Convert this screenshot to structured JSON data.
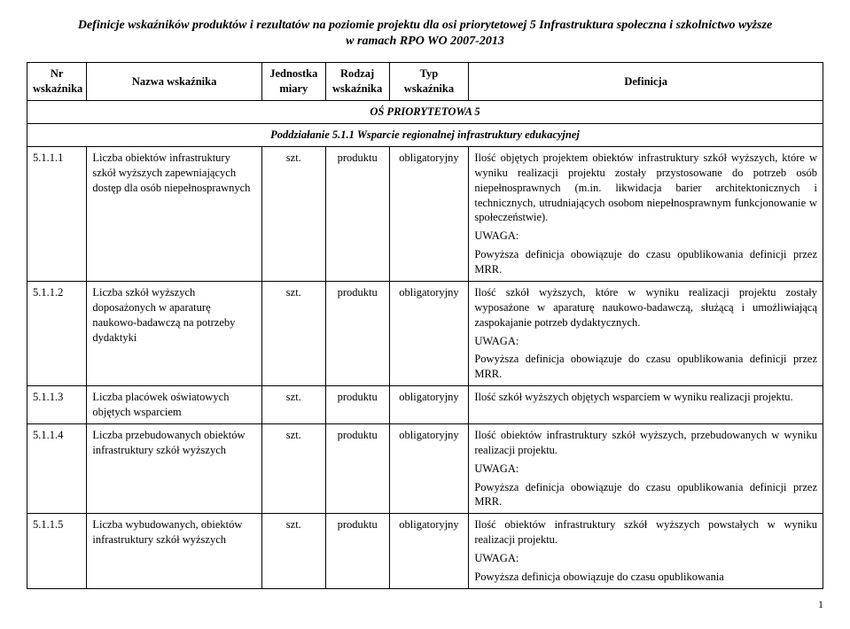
{
  "header": {
    "line1": "Definicje wskaźników produktów i rezultatów na poziomie projektu dla osi priorytetowej 5 Infrastruktura społeczna i szkolnictwo wyższe",
    "line2": "w ramach RPO WO 2007-2013"
  },
  "columns": {
    "c1": "Nr wskaźnika",
    "c2": "Nazwa wskaźnika",
    "c3": "Jednostka miary",
    "c4": "Rodzaj wskaźnika",
    "c5": "Typ wskaźnika",
    "c6": "Definicja"
  },
  "axis_row": "OŚ PRIORYTETOWA 5",
  "sub_row": "Poddziałanie 5.1.1 Wsparcie regionalnej infrastruktury edukacyjnej",
  "rows": [
    {
      "nr": "5.1.1.1",
      "nazwa": "Liczba obiektów infrastruktury szkół wyższych zapewniających dostęp dla osób niepełnosprawnych",
      "jedn": "szt.",
      "rodzaj": "produktu",
      "typ": "obligatoryjny",
      "def_p1": "Ilość objętych projektem obiektów infrastruktury szkół wyższych, które w wyniku realizacji projektu zostały przystosowane do potrzeb osób niepełnosprawnych (m.in. likwidacja barier architektonicznych i technicznych, utrudniających osobom niepełnosprawnym funkcjonowanie w społeczeństwie).",
      "def_p2": "UWAGA:",
      "def_p3": "Powyższa definicja obowiązuje do czasu opublikowania definicji przez MRR."
    },
    {
      "nr": "5.1.1.2",
      "nazwa": "Liczba szkół wyższych doposażonych w aparaturę naukowo-badawczą na potrzeby dydaktyki",
      "jedn": "szt.",
      "rodzaj": "produktu",
      "typ": "obligatoryjny",
      "def_p1": "Ilość szkół wyższych, które w wyniku realizacji projektu zostały wyposażone w aparaturę naukowo-badawczą, służącą i umożliwiającą zaspokajanie potrzeb dydaktycznych.",
      "def_p2": "UWAGA:",
      "def_p3": "Powyższa definicja obowiązuje do czasu opublikowania definicji przez MRR."
    },
    {
      "nr": "5.1.1.3",
      "nazwa": "Liczba placówek oświatowych objętych wsparciem",
      "jedn": "szt.",
      "rodzaj": "produktu",
      "typ": "obligatoryjny",
      "def_p1": "Ilość szkół wyższych objętych wsparciem w wyniku realizacji projektu."
    },
    {
      "nr": "5.1.1.4",
      "nazwa": "Liczba przebudowanych obiektów infrastruktury szkół wyższych",
      "jedn": "szt.",
      "rodzaj": "produktu",
      "typ": "obligatoryjny",
      "def_p1": "Ilość obiektów infrastruktury szkół wyższych, przebudowanych w wyniku realizacji projektu.",
      "def_p2": "UWAGA:",
      "def_p3": "Powyższa definicja obowiązuje do czasu opublikowania definicji przez MRR."
    },
    {
      "nr": "5.1.1.5",
      "nazwa": "Liczba wybudowanych, obiektów infrastruktury szkół wyższych",
      "jedn": "szt.",
      "rodzaj": "produktu",
      "typ": "obligatoryjny",
      "def_p1": "Ilość obiektów infrastruktury szkół wyższych powstałych w wyniku realizacji projektu.",
      "def_p2": "UWAGA:",
      "def_p3": "Powyższa definicja obowiązuje do czasu opublikowania"
    }
  ],
  "page_number": "1"
}
